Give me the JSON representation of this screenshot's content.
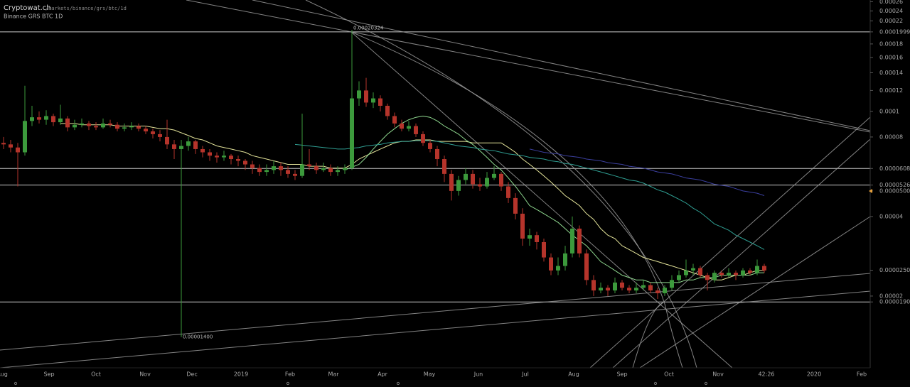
{
  "chart_data": {
    "type": "candlestick",
    "site": "Cryptowat.ch",
    "url_path": "/markets/binance/grs/btc/1d",
    "title": "Binance GRS BTC 1D",
    "log_scale": true,
    "up_color": "#3c9a3c",
    "down_color": "#b5342b",
    "ylim": [
      1.07e-05,
      0.000264
    ],
    "yticks": [
      0.00026,
      0.00024,
      0.00022,
      0.00019998,
      0.00018,
      0.00016,
      0.00014,
      0.00012,
      0.0001,
      8e-05,
      {
        "value": 6.08e-05,
        "label": "0.00006080"
      },
      5.262e-05,
      {
        "value": 5e-05,
        "label": "0.00005000"
      },
      4e-05,
      2.505e-05,
      2e-05,
      {
        "value": 1.9e-05,
        "label": "0.00001900"
      }
    ],
    "levels": [
      0.00019998,
      6.08e-05,
      5.262e-05,
      1.9e-05
    ],
    "level_color": "#c8c8c8",
    "xlabels": [
      "Aug",
      "Sep",
      "Oct",
      "Nov",
      "Dec",
      "2019",
      "Feb",
      "Mar",
      "Apr",
      "May",
      "Jun",
      "Jul",
      "Aug",
      "Sep",
      "Oct",
      "Nov",
      "42:26",
      "2020",
      "Feb"
    ],
    "annotations": [
      {
        "label": "0.00020324"
      },
      {
        "label": "0.00001400"
      }
    ],
    "candles": [
      [
        7.6e-05,
        8e-05,
        7.2e-05,
        7.5e-05
      ],
      [
        7.5e-05,
        7.8e-05,
        7e-05,
        7.3e-05
      ],
      [
        7.3e-05,
        7.6e-05,
        5.2e-05,
        7e-05
      ],
      [
        7e-05,
        0.000125,
        6.8e-05,
        9.2e-05
      ],
      [
        9.2e-05,
        0.000105,
        8.8e-05,
        9.5e-05
      ],
      [
        9.5e-05,
        0.0001,
        9e-05,
        9.3e-05
      ],
      [
        9.3e-05,
        0.000101,
        8.9e-05,
        9.6e-05
      ],
      [
        9.6e-05,
        9.8e-05,
        8.8e-05,
        9.1e-05
      ],
      [
        9.1e-05,
        0.000106,
        8.9e-05,
        9.4e-05
      ],
      [
        9.4e-05,
        9.6e-05,
        8.4e-05,
        8.7e-05
      ],
      [
        8.7e-05,
        9.3e-05,
        8.5e-05,
        8.9e-05
      ],
      [
        8.9e-05,
        9.4e-05,
        8.7e-05,
        9e-05
      ],
      [
        9e-05,
        9.2e-05,
        8.5e-05,
        8.8e-05
      ],
      [
        8.8e-05,
        9.1e-05,
        8.5e-05,
        8.7e-05
      ],
      [
        8.7e-05,
        9.4e-05,
        8.6e-05,
        9e-05
      ],
      [
        9e-05,
        9.3e-05,
        8.7e-05,
        8.9e-05
      ],
      [
        8.9e-05,
        9.1e-05,
        8.4e-05,
        8.6e-05
      ],
      [
        8.6e-05,
        9e-05,
        8.4e-05,
        8.7e-05
      ],
      [
        8.7e-05,
        9.1e-05,
        8.5e-05,
        8.8e-05
      ],
      [
        8.8e-05,
        9e-05,
        8.4e-05,
        8.6e-05
      ],
      [
        8.6e-05,
        8.8e-05,
        8.2e-05,
        8.4e-05
      ],
      [
        8.4e-05,
        8.6e-05,
        7.9e-05,
        8.2e-05
      ],
      [
        8.2e-05,
        8.5e-05,
        7.7e-05,
        8e-05
      ],
      [
        8e-05,
        9.3e-05,
        7.2e-05,
        7.5e-05
      ],
      [
        7.5e-05,
        7.8e-05,
        6.6e-05,
        7.2e-05
      ],
      [
        7.2e-05,
        7.8e-05,
        1.4e-05,
        7.4e-05
      ],
      [
        7.4e-05,
        8e-05,
        7.1e-05,
        7.7e-05
      ],
      [
        7.7e-05,
        7.8e-05,
        6.9e-05,
        7.2e-05
      ],
      [
        7.2e-05,
        7.4e-05,
        6.7e-05,
        7e-05
      ],
      [
        7e-05,
        7.2e-05,
        6.5e-05,
        6.8e-05
      ],
      [
        6.8e-05,
        7e-05,
        6.4e-05,
        6.7e-05
      ],
      [
        6.7e-05,
        7.1e-05,
        6.5e-05,
        6.8e-05
      ],
      [
        6.8e-05,
        6.9e-05,
        6.3e-05,
        6.6e-05
      ],
      [
        6.6e-05,
        6.8e-05,
        6.2e-05,
        6.5e-05
      ],
      [
        6.5e-05,
        6.6e-05,
        6e-05,
        6.3e-05
      ],
      [
        6.3e-05,
        6.5e-05,
        5.8e-05,
        6.1e-05
      ],
      [
        6.1e-05,
        6.3e-05,
        5.7e-05,
        5.9e-05
      ],
      [
        5.9e-05,
        6.3e-05,
        5.7e-05,
        6e-05
      ],
      [
        6e-05,
        6.5e-05,
        5.8e-05,
        6.2e-05
      ],
      [
        6.2e-05,
        6.4e-05,
        5.7e-05,
        6e-05
      ],
      [
        6e-05,
        6.2e-05,
        5.6e-05,
        5.8e-05
      ],
      [
        5.8e-05,
        6e-05,
        5.5e-05,
        5.7e-05
      ],
      [
        5.7e-05,
        9.8e-05,
        5.6e-05,
        6.3e-05
      ],
      [
        6.3e-05,
        7.2e-05,
        6e-05,
        6.2e-05
      ],
      [
        6.2e-05,
        6.4e-05,
        5.8e-05,
        6e-05
      ],
      [
        6e-05,
        6.4e-05,
        5.9e-05,
        6.1e-05
      ],
      [
        6.1e-05,
        6.3e-05,
        5.7e-05,
        5.9e-05
      ],
      [
        5.9e-05,
        6.2e-05,
        5.7e-05,
        6e-05
      ],
      [
        6e-05,
        6.3e-05,
        5.8e-05,
        6.1e-05
      ],
      [
        6.1e-05,
        0.00020324,
        6e-05,
        0.000112
      ],
      [
        0.000112,
        0.00013,
        0.000105,
        0.00012
      ],
      [
        0.00012,
        0.000134,
        0.000104,
        0.000108
      ],
      [
        0.000108,
        0.000118,
        0.000103,
        0.000112
      ],
      [
        0.000112,
        0.000115,
        0.0001,
        0.000105
      ],
      [
        0.000105,
        0.000107,
        9.3e-05,
        9.6e-05
      ],
      [
        9.6e-05,
        9.9e-05,
        8.7e-05,
        9e-05
      ],
      [
        9e-05,
        9.3e-05,
        8.4e-05,
        8.6e-05
      ],
      [
        8.6e-05,
        9.2e-05,
        8.4e-05,
        8.8e-05
      ],
      [
        8.8e-05,
        9e-05,
        8e-05,
        8.2e-05
      ],
      [
        8.2e-05,
        8.4e-05,
        7.4e-05,
        7.6e-05
      ],
      [
        7.6e-05,
        7.8e-05,
        7e-05,
        7.2e-05
      ],
      [
        7.2e-05,
        7.4e-05,
        6.2e-05,
        6.6e-05
      ],
      [
        6.6e-05,
        6.8e-05,
        5.4e-05,
        5.8e-05
      ],
      [
        5.8e-05,
        6e-05,
        4.6e-05,
        5e-05
      ],
      [
        5e-05,
        5.7e-05,
        4.8e-05,
        5.5e-05
      ],
      [
        5.5e-05,
        6.1e-05,
        5.3e-05,
        5.8e-05
      ],
      [
        5.8e-05,
        6e-05,
        5.1e-05,
        5.3e-05
      ],
      [
        5.3e-05,
        5.6e-05,
        5e-05,
        5.2e-05
      ],
      [
        5.2e-05,
        5.9e-05,
        5.1e-05,
        5.6e-05
      ],
      [
        5.6e-05,
        6.2e-05,
        5.5e-05,
        5.8e-05
      ],
      [
        5.8e-05,
        5.9e-05,
        5e-05,
        5.2e-05
      ],
      [
        5.2e-05,
        5.4e-05,
        4.5e-05,
        4.7e-05
      ],
      [
        4.7e-05,
        4.9e-05,
        3.9e-05,
        4.1e-05
      ],
      [
        4.1e-05,
        4.3e-05,
        3.1e-05,
        3.3e-05
      ],
      [
        3.3e-05,
        3.6e-05,
        3.1e-05,
        3.4e-05
      ],
      [
        3.4e-05,
        3.5e-05,
        3e-05,
        3.2e-05
      ],
      [
        3.2e-05,
        3.3e-05,
        2.7e-05,
        2.8e-05
      ],
      [
        2.8e-05,
        2.9e-05,
        2.4e-05,
        2.5e-05
      ],
      [
        2.5e-05,
        2.8e-05,
        2.4e-05,
        2.6e-05
      ],
      [
        2.6e-05,
        3.1e-05,
        2.5e-05,
        2.9e-05
      ],
      [
        2.9e-05,
        4e-05,
        2.8e-05,
        3.6e-05
      ],
      [
        3.6e-05,
        3.7e-05,
        2.8e-05,
        2.9e-05
      ],
      [
        2.9e-05,
        3e-05,
        2.2e-05,
        2.3e-05
      ],
      [
        2.3e-05,
        2.4e-05,
        2e-05,
        2.1e-05
      ],
      [
        2.1e-05,
        2.25e-05,
        2.05e-05,
        2.15e-05
      ],
      [
        2.15e-05,
        2.2e-05,
        2e-05,
        2.1e-05
      ],
      [
        2.1e-05,
        2.35e-05,
        2.05e-05,
        2.25e-05
      ],
      [
        2.25e-05,
        2.3e-05,
        2.1e-05,
        2.15e-05
      ],
      [
        2.15e-05,
        2.2e-05,
        2.05e-05,
        2.1e-05
      ],
      [
        2.1e-05,
        2.25e-05,
        2.05e-05,
        2.15e-05
      ],
      [
        2.15e-05,
        2.3e-05,
        2.1e-05,
        2.2e-05
      ],
      [
        2.2e-05,
        2.25e-05,
        2.05e-05,
        2.1e-05
      ],
      [
        2.1e-05,
        2.15e-05,
        1.95e-05,
        2.05e-05
      ],
      [
        2.05e-05,
        2.2e-05,
        2e-05,
        2.15e-05
      ],
      [
        2.15e-05,
        2.4e-05,
        2.1e-05,
        2.3e-05
      ],
      [
        2.3e-05,
        2.5e-05,
        2.25e-05,
        2.4e-05
      ],
      [
        2.4e-05,
        2.75e-05,
        2.35e-05,
        2.5e-05
      ],
      [
        2.5e-05,
        2.65e-05,
        2.4e-05,
        2.55e-05
      ],
      [
        2.55e-05,
        2.6e-05,
        2.35e-05,
        2.4e-05
      ],
      [
        2.4e-05,
        2.45e-05,
        2.1e-05,
        2.3e-05
      ],
      [
        2.3e-05,
        2.5e-05,
        2.25e-05,
        2.45e-05
      ],
      [
        2.45e-05,
        2.5e-05,
        2.35e-05,
        2.4e-05
      ],
      [
        2.4e-05,
        2.55e-05,
        2.35e-05,
        2.45e-05
      ],
      [
        2.45e-05,
        2.5e-05,
        2.3e-05,
        2.4e-05
      ],
      [
        2.4e-05,
        2.55e-05,
        2.35e-05,
        2.5e-05
      ],
      [
        2.5e-05,
        2.55e-05,
        2.4e-05,
        2.45e-05
      ],
      [
        2.45e-05,
        2.75e-05,
        2.4e-05,
        2.6e-05
      ],
      [
        2.6e-05,
        2.65e-05,
        2.45e-05,
        2.5e-05
      ]
    ],
    "series": [
      {
        "color": "#e4e49a",
        "values": [
          null,
          null,
          null,
          null,
          null,
          null,
          null,
          null,
          9e-05,
          9e-05,
          9e-05,
          8.9e-05,
          8.9e-05,
          8.9e-05,
          8.9e-05,
          8.9e-05,
          8.8e-05,
          8.8e-05,
          8.8e-05,
          8.8e-05,
          8.8e-05,
          8.7e-05,
          8.6e-05,
          8.6e-05,
          8.5e-05,
          8.3e-05,
          8.1e-05,
          7.9e-05,
          7.8e-05,
          7.6e-05,
          7.4e-05,
          7.3e-05,
          7.2e-05,
          7.1e-05,
          7e-05,
          6.8e-05,
          6.7e-05,
          6.6e-05,
          6.5e-05,
          6.4e-05,
          6.3e-05,
          6.3e-05,
          6.3e-05,
          6.2e-05,
          6.2e-05,
          6.2e-05,
          6.1e-05,
          6.1e-05,
          6.1e-05,
          6.3e-05,
          6.6e-05,
          6.8e-05,
          7e-05,
          7.2e-05,
          7.4e-05,
          7.6e-05,
          7.7e-05,
          7.7e-05,
          7.8e-05,
          7.8e-05,
          7.8e-05,
          7.7e-05,
          7.7e-05,
          7.7e-05,
          7.7e-05,
          7.7e-05,
          7.6e-05,
          7.6e-05,
          7.6e-05,
          7.6e-05,
          7.6e-05,
          7.3e-05,
          7e-05,
          6.6e-05,
          6.3e-05,
          6e-05,
          5.7e-05,
          5.4e-05,
          5.1e-05,
          4.8e-05,
          4.6e-05,
          4.4e-05,
          4.1e-05,
          3.9e-05,
          3.6e-05,
          3.4e-05,
          3.3e-05,
          3.1e-05,
          3e-05,
          2.9e-05,
          2.8e-05,
          2.75e-05,
          2.7e-05,
          2.65e-05,
          2.6e-05,
          2.55e-05,
          2.5e-05,
          2.45e-05,
          2.4e-05,
          2.35e-05,
          2.3e-05,
          2.3e-05,
          2.35e-05,
          2.4e-05,
          2.4e-05,
          2.45e-05,
          2.5e-05,
          2.5e-05
        ]
      },
      {
        "color": "#8fd88f",
        "values": [
          null,
          null,
          null,
          null,
          null,
          null,
          null,
          null,
          null,
          null,
          null,
          null,
          null,
          null,
          null,
          null,
          null,
          null,
          null,
          null,
          null,
          null,
          null,
          null,
          null,
          null,
          null,
          null,
          null,
          null,
          null,
          null,
          null,
          null,
          null,
          null,
          null,
          null,
          null,
          null,
          null,
          null,
          null,
          null,
          null,
          null,
          null,
          null,
          6e-05,
          6.15e-05,
          6.3e-05,
          6.7e-05,
          7.2e-05,
          7.7e-05,
          8.2e-05,
          8.6e-05,
          9e-05,
          9.3e-05,
          9.5e-05,
          9.6e-05,
          9.5e-05,
          9.2e-05,
          8.8e-05,
          8.5e-05,
          8.2e-05,
          7.8e-05,
          7.5e-05,
          7.1e-05,
          6.7e-05,
          6.3e-05,
          6e-05,
          5.6e-05,
          5.2e-05,
          4.8e-05,
          4.4e-05,
          4.25e-05,
          4.1e-05,
          3.95e-05,
          3.8e-05,
          3.6e-05,
          3.4e-05,
          3.25e-05,
          3.1e-05,
          2.9e-05,
          2.7e-05,
          2.6e-05,
          2.5e-05,
          2.4e-05,
          2.35e-05,
          2.3e-05,
          2.3e-05,
          2.25e-05,
          2.25e-05,
          2.25e-05,
          2.25e-05,
          2.25e-05,
          2.3e-05,
          2.3e-05,
          2.35e-05,
          2.35e-05,
          2.35e-05,
          2.4e-05,
          2.4e-05,
          2.4e-05,
          2.4e-05,
          2.4e-05,
          2.45e-05,
          2.45e-05
        ]
      },
      {
        "color": "#2f9e92",
        "values": [
          null,
          null,
          null,
          null,
          null,
          null,
          null,
          null,
          null,
          null,
          null,
          null,
          null,
          null,
          null,
          null,
          null,
          null,
          null,
          null,
          null,
          null,
          null,
          null,
          null,
          null,
          null,
          null,
          null,
          null,
          null,
          null,
          null,
          null,
          null,
          null,
          null,
          null,
          null,
          null,
          null,
          7.5e-05,
          7.45e-05,
          7.4e-05,
          7.35e-05,
          7.3e-05,
          7.25e-05,
          7.2e-05,
          7.2e-05,
          7.25e-05,
          7.3e-05,
          7.4e-05,
          7.45e-05,
          7.5e-05,
          7.6e-05,
          7.65e-05,
          7.7e-05,
          7.7e-05,
          7.75e-05,
          7.75e-05,
          7.75e-05,
          7.7e-05,
          7.6e-05,
          7.5e-05,
          7.4e-05,
          7.35e-05,
          7.3e-05,
          7.2e-05,
          7.15e-05,
          7.1e-05,
          7e-05,
          6.9e-05,
          6.85e-05,
          6.8e-05,
          6.7e-05,
          6.65e-05,
          6.6e-05,
          6.5e-05,
          6.45e-05,
          6.35e-05,
          6.3e-05,
          6.2e-05,
          6.1e-05,
          6e-05,
          5.9e-05,
          5.8e-05,
          5.7e-05,
          5.6e-05,
          5.5e-05,
          5.45e-05,
          5.35e-05,
          5.2e-05,
          5.05e-05,
          4.95e-05,
          4.8e-05,
          4.65e-05,
          4.5e-05,
          4.3e-05,
          4.15e-05,
          3.95e-05,
          3.75e-05,
          3.65e-05,
          3.55e-05,
          3.4e-05,
          3.3e-05,
          3.2e-05,
          3.1e-05,
          3e-05
        ]
      },
      {
        "color": "#3b3f9e",
        "values": [
          null,
          null,
          null,
          null,
          null,
          null,
          null,
          null,
          null,
          null,
          null,
          null,
          null,
          null,
          null,
          null,
          null,
          null,
          null,
          null,
          null,
          null,
          null,
          null,
          null,
          null,
          null,
          null,
          null,
          null,
          null,
          null,
          null,
          null,
          null,
          null,
          null,
          null,
          null,
          null,
          null,
          null,
          null,
          null,
          null,
          null,
          null,
          null,
          null,
          null,
          null,
          null,
          null,
          null,
          null,
          null,
          null,
          null,
          null,
          null,
          null,
          null,
          null,
          null,
          null,
          null,
          null,
          null,
          null,
          null,
          null,
          null,
          null,
          null,
          7.2e-05,
          7.1e-05,
          7e-05,
          6.95e-05,
          6.9e-05,
          6.8e-05,
          6.75e-05,
          6.7e-05,
          6.6e-05,
          6.55e-05,
          6.5e-05,
          6.4e-05,
          6.35e-05,
          6.3e-05,
          6.2e-05,
          6.15e-05,
          6.1e-05,
          6e-05,
          5.9e-05,
          5.85e-05,
          5.8e-05,
          5.7e-05,
          5.6e-05,
          5.55e-05,
          5.5e-05,
          5.4e-05,
          5.3e-05,
          5.25e-05,
          5.2e-05,
          5.1e-05,
          5e-05,
          4.95e-05,
          4.9e-05,
          4.8e-05
        ]
      }
    ]
  }
}
